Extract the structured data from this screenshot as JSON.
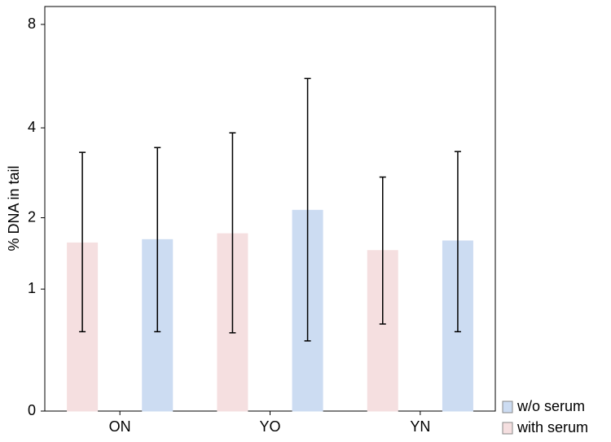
{
  "chart_data": {
    "type": "bar",
    "y_label": "% DNA in tail",
    "categories": [
      "ON",
      "YO",
      "YN"
    ],
    "series": [
      {
        "name": "with serum",
        "color": "#f5dfe0",
        "values": [
          1.6,
          1.74,
          1.49
        ],
        "upper": [
          3.35,
          3.86,
          2.78
        ],
        "lower": [
          0.57,
          0.56,
          0.64
        ]
      },
      {
        "name": "w/o serum",
        "color": "#ccdcf2",
        "values": [
          1.65,
          2.13,
          1.63
        ],
        "upper": [
          3.47,
          5.62,
          3.37
        ],
        "lower": [
          0.57,
          0.49,
          0.57
        ]
      }
    ],
    "ylim": [
      0,
      8
    ],
    "yticks": [
      0,
      1,
      2,
      4,
      8
    ],
    "yscale": "log1p",
    "legend": "bottom-right"
  }
}
